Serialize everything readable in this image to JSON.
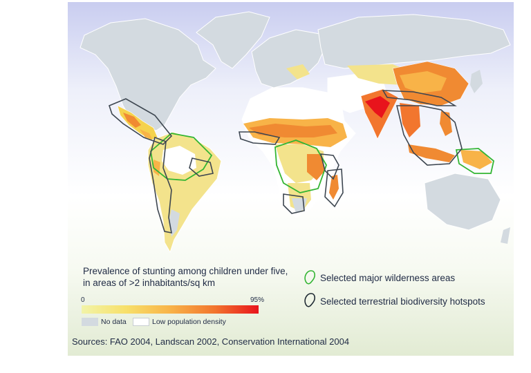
{
  "legend": {
    "title": "Prevalence of stunting among children under five, in areas of >2 inhabitants/sq km",
    "scale_min": "0",
    "scale_max": "95%",
    "no_data": "No data",
    "low_density": "Low population density",
    "wilderness": "Selected major wilderness areas",
    "hotspots": "Selected terrestrial biodiversity hotspots"
  },
  "sources": "Sources: FAO 2004, Landscan 2002, Conservation International 2004",
  "colors": {
    "scale": [
      "#f2f4a8",
      "#f7e06a",
      "#f8b348",
      "#f2762e",
      "#e8141c"
    ],
    "no_data": "#d3dae0",
    "low_density": "#ffffff",
    "wilderness_outline": "#33b533",
    "hotspot_outline": "#3d4650",
    "sky": "#c9cdf0",
    "ground": "#e7efd9"
  }
}
